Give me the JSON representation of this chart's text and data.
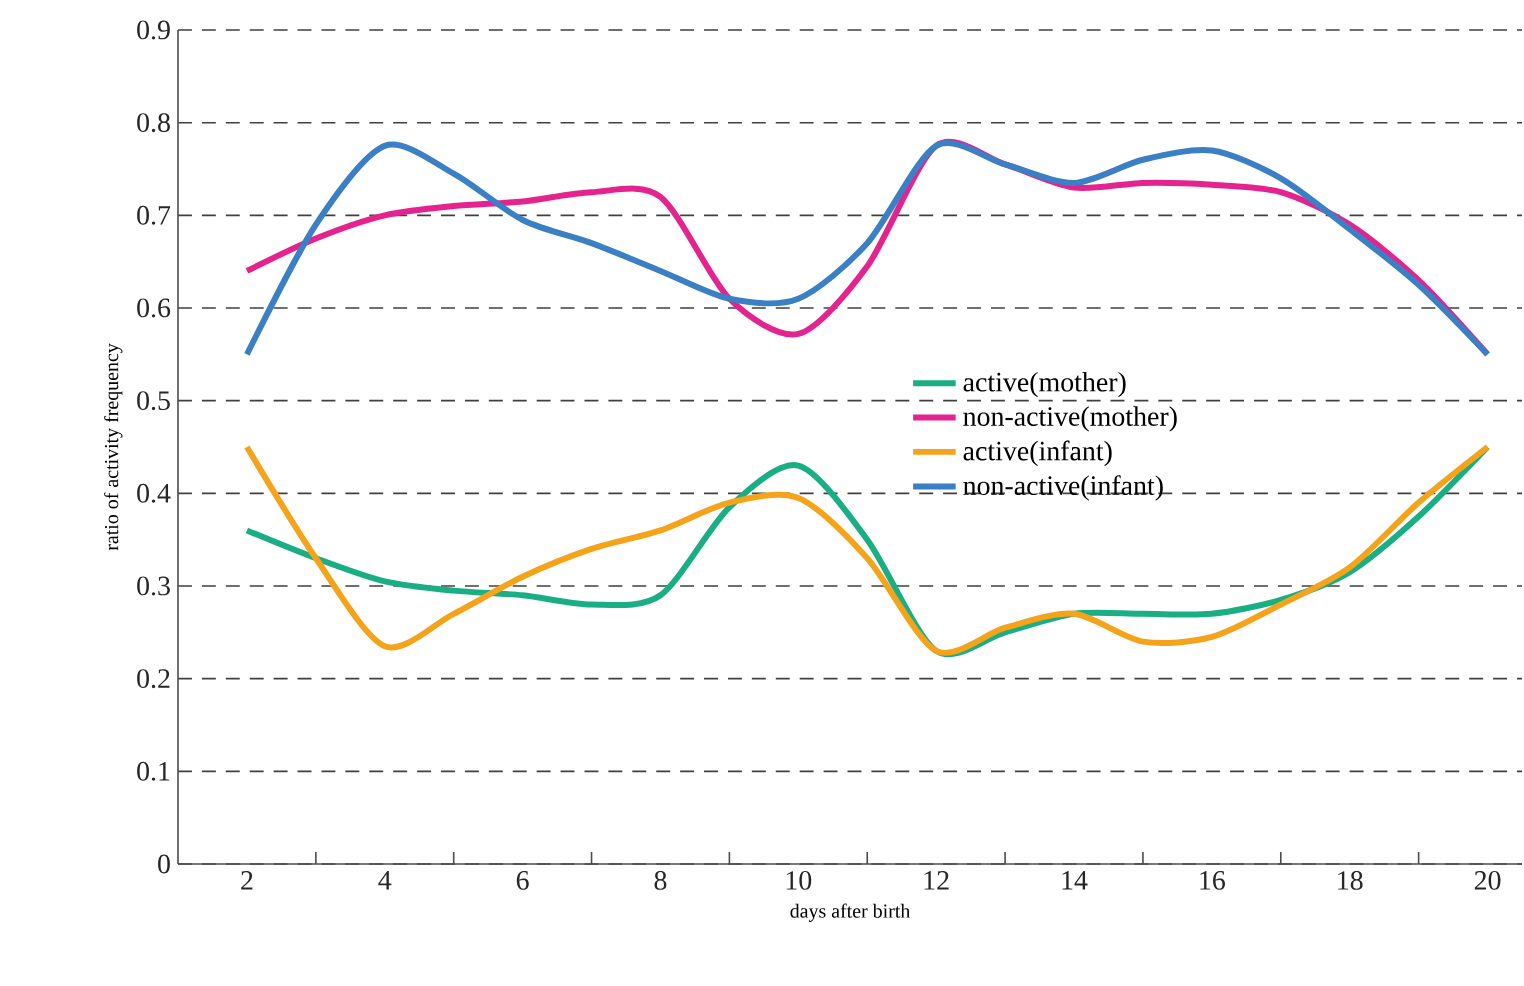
{
  "chart_data": {
    "type": "line",
    "xlabel": "days after birth",
    "ylabel": "ratio of activity frequency",
    "x": [
      2,
      3,
      4,
      5,
      6,
      7,
      8,
      9,
      10,
      11,
      12,
      13,
      14,
      15,
      16,
      17,
      18,
      19,
      20
    ],
    "xlim": [
      1,
      20.5
    ],
    "xticks": [
      2,
      {
        "value": 3,
        "label": null
      },
      4,
      {
        "value": 5,
        "label": null
      },
      6,
      {
        "value": 7,
        "label": null
      },
      8,
      {
        "value": 9,
        "label": null
      },
      10,
      {
        "value": 11,
        "label": null
      },
      12,
      {
        "value": 13,
        "label": null
      },
      14,
      {
        "value": 15,
        "label": null
      },
      16,
      {
        "value": 17,
        "label": null
      },
      18,
      {
        "value": 19,
        "label": null
      },
      20
    ],
    "ylim": [
      0,
      0.9
    ],
    "yticks": [
      0,
      0.1,
      0.2,
      0.3,
      0.4,
      0.5,
      0.6,
      0.7,
      0.8,
      0.9
    ],
    "grid": "y",
    "legend": "right",
    "marker": "none",
    "line_style": "solid",
    "series": [
      {
        "name": "active(mother)",
        "color": "#1aae85",
        "values": [
          0.36,
          0.33,
          0.305,
          0.295,
          0.29,
          0.28,
          0.29,
          0.385,
          0.43,
          0.35,
          0.23,
          0.25,
          0.27,
          0.27,
          0.27,
          0.285,
          0.315,
          0.375,
          0.45
        ]
      },
      {
        "name": "non-active(mother)",
        "color": "#e5238f",
        "values": [
          0.64,
          0.675,
          0.7,
          0.71,
          0.715,
          0.725,
          0.72,
          0.61,
          0.572,
          0.645,
          0.775,
          0.755,
          0.73,
          0.735,
          0.733,
          0.725,
          0.69,
          0.63,
          0.55
        ]
      },
      {
        "name": "active(infant)",
        "color": "#f5a31a",
        "values": [
          0.45,
          0.33,
          0.235,
          0.27,
          0.31,
          0.34,
          0.36,
          0.39,
          0.395,
          0.33,
          0.23,
          0.255,
          0.27,
          0.24,
          0.245,
          0.28,
          0.32,
          0.39,
          0.45
        ]
      },
      {
        "name": "non-active(infant)",
        "color": "#3b7fc4",
        "values": [
          0.55,
          0.69,
          0.775,
          0.745,
          0.695,
          0.67,
          0.64,
          0.61,
          0.61,
          0.67,
          0.775,
          0.755,
          0.735,
          0.76,
          0.77,
          0.74,
          0.685,
          0.625,
          0.55
        ]
      }
    ]
  }
}
